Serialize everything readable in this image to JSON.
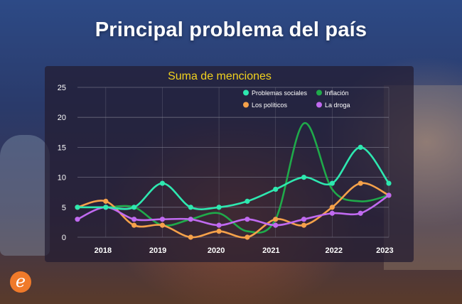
{
  "title": "Principal problema del país",
  "chart_data": {
    "type": "line",
    "title": "Suma de menciones",
    "xlabel": "",
    "ylabel": "",
    "x_ticks": [
      "2018",
      "2019",
      "2020",
      "2021",
      "2022",
      "2023"
    ],
    "y_ticks": [
      0,
      5,
      10,
      15,
      20,
      25
    ],
    "ylim": [
      0,
      25
    ],
    "grid": true,
    "legend_position": "top-right",
    "series": [
      {
        "name": "Problemas sociales",
        "color": "#2ee8b0",
        "x": [
          2017.5,
          2018.0,
          2018.5,
          2019.0,
          2019.5,
          2020.0,
          2020.5,
          2021.0,
          2021.5,
          2022.0,
          2022.5,
          2023.0
        ],
        "y": [
          5,
          5,
          5,
          9,
          5,
          5,
          6,
          8,
          10,
          9,
          15,
          9
        ]
      },
      {
        "name": "Inflación",
        "color": "#1faa4a",
        "x": [
          2017.5,
          2018.0,
          2018.5,
          2019.0,
          2019.5,
          2020.0,
          2020.5,
          2021.0,
          2021.5,
          2022.0,
          2022.5,
          2023.0
        ],
        "y": [
          5,
          5,
          5,
          2,
          3,
          4,
          1,
          3,
          19,
          8,
          6,
          7
        ]
      },
      {
        "name": "Los políticos",
        "color": "#f5a14a",
        "x": [
          2017.5,
          2018.0,
          2018.5,
          2019.0,
          2019.5,
          2020.0,
          2020.5,
          2021.0,
          2021.5,
          2022.0,
          2022.5,
          2023.0
        ],
        "y": [
          5,
          6,
          2,
          2,
          0,
          1,
          0,
          3,
          2,
          5,
          9,
          7
        ]
      },
      {
        "name": "La droga",
        "color": "#c06af0",
        "x": [
          2017.5,
          2018.0,
          2018.5,
          2019.0,
          2019.5,
          2020.0,
          2020.5,
          2021.0,
          2021.5,
          2022.0,
          2022.5,
          2023.0
        ],
        "y": [
          3,
          5,
          3,
          3,
          3,
          2,
          3,
          2,
          3,
          4,
          4,
          7
        ]
      }
    ]
  },
  "colors": {
    "title_color": "#ffffff",
    "chart_title_color": "#f2d21e",
    "axis_text": "#ffffff",
    "grid": "#8a8a9a"
  },
  "logo": {
    "icon": "elcomercio-e-logo",
    "glyph": "e"
  }
}
